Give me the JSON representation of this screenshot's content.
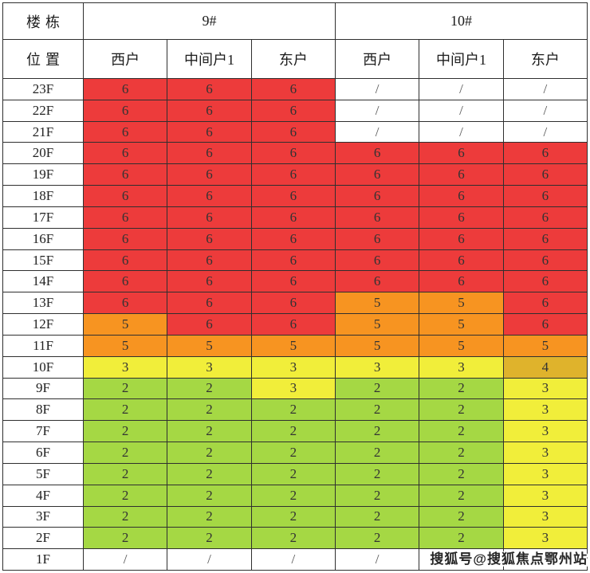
{
  "colors": {
    "red": "#ED3B3B",
    "orange": "#F79421",
    "yellow": "#F1EE3A",
    "gold": "#DFB32C",
    "green": "#A5D844",
    "none": "#FFFFFF",
    "gridline": "#2F2F2F",
    "cell_text": "#333333"
  },
  "watermark": {
    "text": "搜狐号@搜狐焦点鄂州站"
  },
  "chart_data": {
    "type": "heatmap",
    "title": "",
    "corner_top_label": "楼栋",
    "corner_bottom_label": "位置",
    "building_groups": [
      {
        "name": "9#",
        "span": 3
      },
      {
        "name": "10#",
        "span": 3
      }
    ],
    "unit_headers": [
      "西户",
      "中间户1",
      "东户",
      "西户",
      "中间户1",
      "东户"
    ],
    "columns": [
      "9# 西户",
      "9# 中间户1",
      "9# 东户",
      "10# 西户",
      "10# 中间户1",
      "10# 东户"
    ],
    "color_scale": {
      "6": "red",
      "5": "orange",
      "4": "gold",
      "3": "yellow",
      "2": "green",
      "/": "none"
    },
    "floors": [
      "23F",
      "22F",
      "21F",
      "20F",
      "19F",
      "18F",
      "17F",
      "16F",
      "15F",
      "14F",
      "13F",
      "12F",
      "11F",
      "10F",
      "9F",
      "8F",
      "7F",
      "6F",
      "5F",
      "4F",
      "3F",
      "2F",
      "1F"
    ],
    "cells": [
      [
        "6:red",
        "6:red",
        "6:red",
        "/:none",
        "/:none",
        "/:none"
      ],
      [
        "6:red",
        "6:red",
        "6:red",
        "/:none",
        "/:none",
        "/:none"
      ],
      [
        "6:red",
        "6:red",
        "6:red",
        "/:none",
        "/:none",
        "/:none"
      ],
      [
        "6:red",
        "6:red",
        "6:red",
        "6:red",
        "6:red",
        "6:red"
      ],
      [
        "6:red",
        "6:red",
        "6:red",
        "6:red",
        "6:red",
        "6:red"
      ],
      [
        "6:red",
        "6:red",
        "6:red",
        "6:red",
        "6:red",
        "6:red"
      ],
      [
        "6:red",
        "6:red",
        "6:red",
        "6:red",
        "6:red",
        "6:red"
      ],
      [
        "6:red",
        "6:red",
        "6:red",
        "6:red",
        "6:red",
        "6:red"
      ],
      [
        "6:red",
        "6:red",
        "6:red",
        "6:red",
        "6:red",
        "6:red"
      ],
      [
        "6:red",
        "6:red",
        "6:red",
        "6:red",
        "6:red",
        "6:red"
      ],
      [
        "6:red",
        "6:red",
        "6:red",
        "5:orange",
        "5:orange",
        "6:red"
      ],
      [
        "5:orange",
        "6:red",
        "6:red",
        "5:orange",
        "5:orange",
        "6:red"
      ],
      [
        "5:orange",
        "5:orange",
        "5:orange",
        "5:orange",
        "5:orange",
        "5:orange"
      ],
      [
        "3:yellow",
        "3:yellow",
        "3:yellow",
        "3:yellow",
        "3:yellow",
        "4:gold"
      ],
      [
        "2:green",
        "2:green",
        "3:yellow",
        "2:green",
        "2:green",
        "3:yellow"
      ],
      [
        "2:green",
        "2:green",
        "2:green",
        "2:green",
        "2:green",
        "3:yellow"
      ],
      [
        "2:green",
        "2:green",
        "2:green",
        "2:green",
        "2:green",
        "3:yellow"
      ],
      [
        "2:green",
        "2:green",
        "2:green",
        "2:green",
        "2:green",
        "3:yellow"
      ],
      [
        "2:green",
        "2:green",
        "2:green",
        "2:green",
        "2:green",
        "3:yellow"
      ],
      [
        "2:green",
        "2:green",
        "2:green",
        "2:green",
        "2:green",
        "3:yellow"
      ],
      [
        "2:green",
        "2:green",
        "2:green",
        "2:green",
        "2:green",
        "3:yellow"
      ],
      [
        "2:green",
        "2:green",
        "2:green",
        "2:green",
        "2:green",
        "3:yellow"
      ],
      [
        "/:none",
        "/:none",
        "/:none",
        "/:none",
        ":none",
        ":none"
      ]
    ]
  }
}
